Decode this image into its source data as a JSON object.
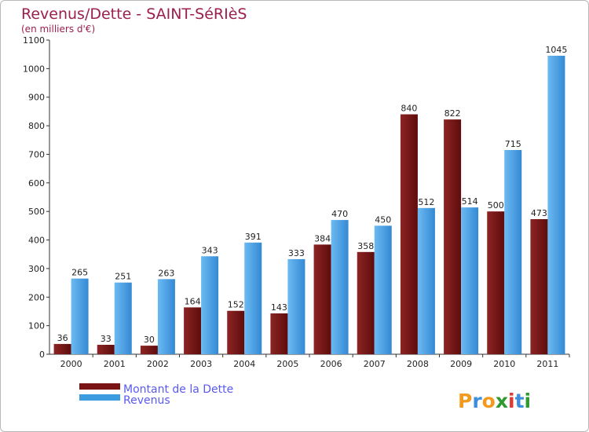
{
  "chart_data": {
    "type": "bar",
    "title": "Revenus/Dette - SAINT-SéRIèS",
    "subtitle": "(en milliers d'€)",
    "categories": [
      "2000",
      "2001",
      "2002",
      "2003",
      "2004",
      "2005",
      "2006",
      "2007",
      "2008",
      "2009",
      "2010",
      "2011"
    ],
    "series": [
      {
        "name": "Montant de la Dette",
        "color": "#7a1414",
        "values": [
          36,
          33,
          30,
          164,
          152,
          143,
          384,
          358,
          840,
          822,
          500,
          473
        ]
      },
      {
        "name": "Revenus",
        "color": "#3d9be0",
        "values": [
          265,
          251,
          263,
          343,
          391,
          333,
          470,
          450,
          512,
          514,
          715,
          1045
        ]
      }
    ],
    "ylim": [
      0,
      1100
    ],
    "yticks": [
      0,
      100,
      200,
      300,
      400,
      500,
      600,
      700,
      800,
      900,
      1000,
      1100
    ],
    "grid": false,
    "legend_position": "bottom-left"
  },
  "brand": {
    "logo_letters": [
      "P",
      "r",
      "o",
      "x",
      "i",
      "t",
      "i"
    ],
    "logo_colors": [
      "#f29a1e",
      "#3d8fdc",
      "#f29a1e",
      "#2f9a2f",
      "#e03a2f",
      "#3d8fdc",
      "#2f9a2f"
    ]
  }
}
